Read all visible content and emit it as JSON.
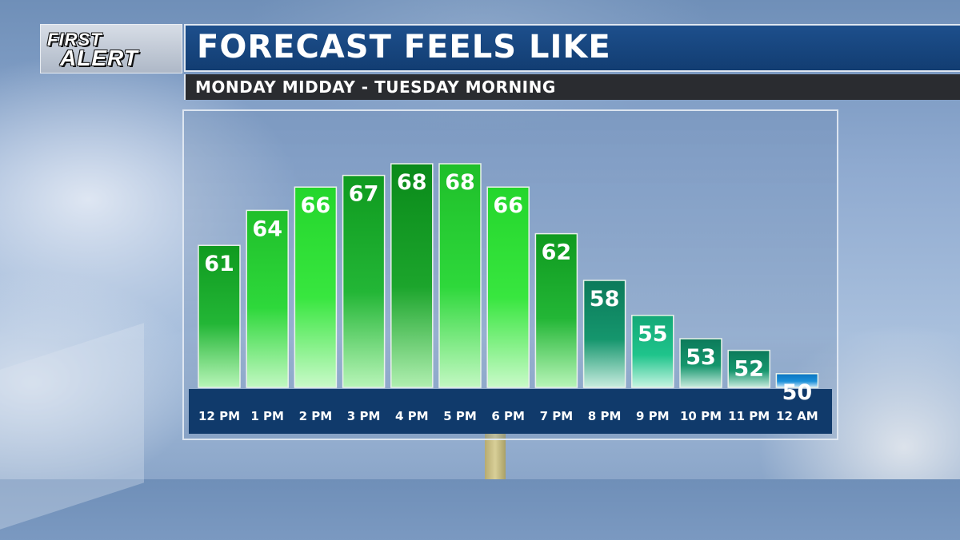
{
  "logo": {
    "line1": "FIRST",
    "line2": "ALERT"
  },
  "header": {
    "title": "FORECAST FEELS LIKE",
    "subtitle": "MONDAY MIDDAY - TUESDAY MORNING"
  },
  "chart_data": {
    "type": "bar",
    "title": "FORECAST FEELS LIKE",
    "subtitle": "MONDAY MIDDAY - TUESDAY MORNING",
    "categories": [
      "12 PM",
      "1 PM",
      "2 PM",
      "3 PM",
      "4 PM",
      "5 PM",
      "6 PM",
      "7 PM",
      "8 PM",
      "9 PM",
      "10 PM",
      "11 PM",
      "12 AM"
    ],
    "values": [
      61,
      64,
      66,
      67,
      68,
      68,
      66,
      62,
      58,
      55,
      53,
      52,
      50
    ],
    "bar_colors": [
      [
        "#0f9a1f",
        "#23b636",
        "#b8f5b8"
      ],
      [
        "#1fbf2a",
        "#2ed83b",
        "#c2f8c2"
      ],
      [
        "#24d62c",
        "#38e63f",
        "#c9fac9"
      ],
      [
        "#0f9a1f",
        "#23b636",
        "#b8f5b8"
      ],
      [
        "#0a8a1a",
        "#1ca52c",
        "#b0efb0"
      ],
      [
        "#1fbf2a",
        "#2ed83b",
        "#c2f8c2"
      ],
      [
        "#24d62c",
        "#38e63f",
        "#c9fac9"
      ],
      [
        "#0f9a1f",
        "#23b636",
        "#b8f5b8"
      ],
      [
        "#0c7a5a",
        "#15966d",
        "#c8ecdf"
      ],
      [
        "#14a877",
        "#1fc48b",
        "#c6f4e2"
      ],
      [
        "#0c7a5a",
        "#15966d",
        "#c8ecdf"
      ],
      [
        "#0c7a5a",
        "#15966d",
        "#c8ecdf"
      ],
      [
        "#0a74c0",
        "#1a8fd8",
        "#c8e6f8"
      ]
    ],
    "grid": false,
    "legend": "none"
  }
}
